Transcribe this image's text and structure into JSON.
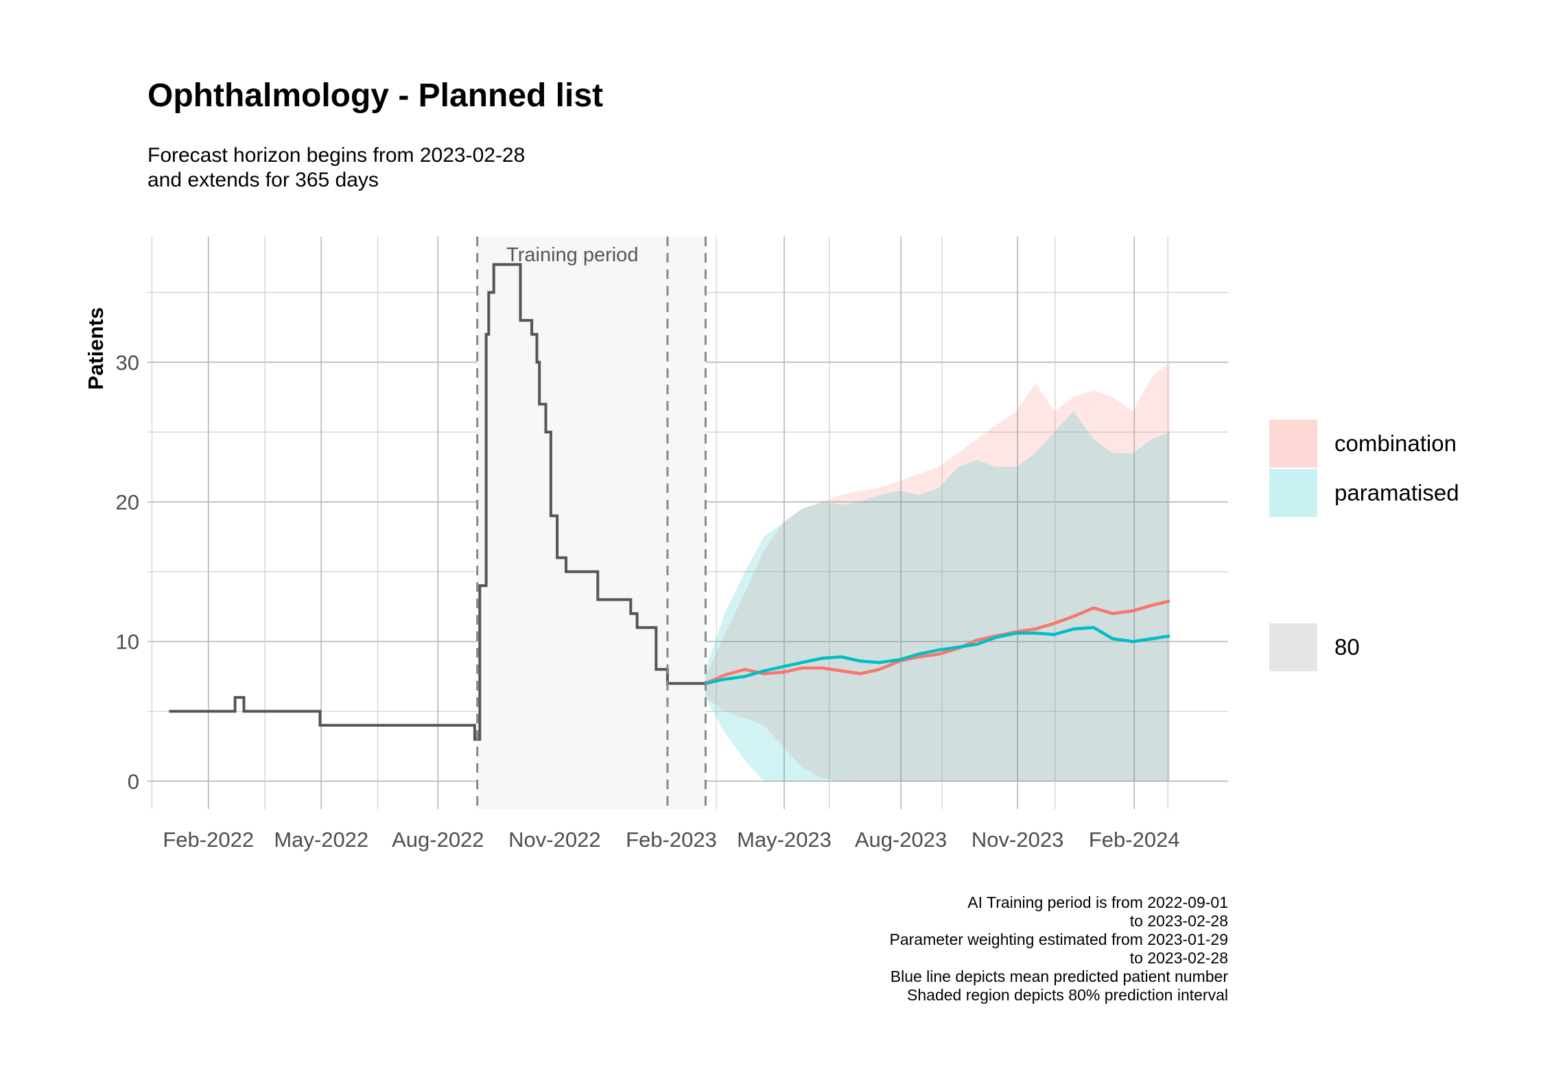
{
  "title": "Ophthalmology - Planned list",
  "subtitle": [
    "Forecast horizon begins from 2023-02-28",
    "and extends for 365 days"
  ],
  "caption": [
    "AI Training period is from 2022-09-01",
    "to 2023-02-28",
    "Parameter weighting estimated from 2023-01-29",
    "to 2023-02-28",
    "Blue line depicts mean predicted patient number",
    "Shaded region depicts 80% prediction interval"
  ],
  "legend": {
    "items": [
      {
        "label": "combination",
        "color": "#F8766D"
      },
      {
        "label": "paramatised",
        "color": "#00BFC4"
      }
    ],
    "interval_label": "80"
  },
  "colors": {
    "observed": "#555555",
    "combination": "#F8766D",
    "paramatised": "#00BFC4",
    "training_shade": "#F7F7F7"
  },
  "chart_data": {
    "type": "line",
    "ylabel": "Patients",
    "xlabel": "",
    "x_ticks": [
      "Feb-2022",
      "May-2022",
      "Aug-2022",
      "Nov-2022",
      "Feb-2023",
      "May-2023",
      "Aug-2023",
      "Nov-2023",
      "Feb-2024"
    ],
    "y_ticks": [
      0,
      10,
      20,
      30
    ],
    "ylim": [
      -2,
      39
    ],
    "xlim": [
      "2021-12-15",
      "2024-04-15"
    ],
    "grid": true,
    "legend_position": "right",
    "training_period": {
      "label": "Training period",
      "start": "2022-09-01",
      "end": "2023-02-28"
    },
    "vlines": [
      "2022-09-01",
      "2023-01-29",
      "2023-02-28"
    ],
    "observed": {
      "x": [
        "2022-01-01",
        "2022-01-31",
        "2022-02-14",
        "2022-02-22",
        "2022-03-01",
        "2022-03-31",
        "2022-04-30",
        "2022-05-31",
        "2022-06-30",
        "2022-07-31",
        "2022-08-10",
        "2022-08-25",
        "2022-08-30",
        "2022-09-01",
        "2022-09-03",
        "2022-09-05",
        "2022-09-08",
        "2022-09-10",
        "2022-09-14",
        "2022-09-18",
        "2022-09-28",
        "2022-10-05",
        "2022-10-10",
        "2022-10-14",
        "2022-10-18",
        "2022-10-20",
        "2022-10-25",
        "2022-10-29",
        "2022-11-03",
        "2022-11-10",
        "2022-11-20",
        "2022-11-30",
        "2022-12-05",
        "2022-12-15",
        "2022-12-31",
        "2023-01-05",
        "2023-01-15",
        "2023-01-20",
        "2023-01-25",
        "2023-01-29",
        "2023-02-10",
        "2023-02-28"
      ],
      "y": [
        5,
        5,
        5,
        6,
        5,
        5,
        4,
        4,
        4,
        4,
        4,
        4,
        3,
        3,
        14,
        14,
        32,
        35,
        37,
        37,
        37,
        33,
        33,
        32,
        30,
        27,
        25,
        19,
        16,
        15,
        15,
        15,
        13,
        13,
        12,
        11,
        11,
        8,
        8,
        7,
        7,
        7
      ]
    },
    "series": [
      {
        "name": "combination",
        "x": [
          "2023-02-28",
          "2023-03-15",
          "2023-03-31",
          "2023-04-15",
          "2023-04-30",
          "2023-05-15",
          "2023-05-31",
          "2023-06-15",
          "2023-06-30",
          "2023-07-15",
          "2023-07-31",
          "2023-08-15",
          "2023-08-31",
          "2023-09-15",
          "2023-09-30",
          "2023-10-15",
          "2023-10-31",
          "2023-11-15",
          "2023-11-30",
          "2023-12-15",
          "2023-12-31",
          "2024-01-15",
          "2024-01-31",
          "2024-02-15",
          "2024-02-29"
        ],
        "values": [
          7.0,
          7.6,
          8.0,
          7.7,
          7.8,
          8.1,
          8.1,
          7.9,
          7.7,
          8.0,
          8.6,
          8.9,
          9.1,
          9.5,
          10.1,
          10.4,
          10.7,
          10.9,
          11.3,
          11.8,
          12.4,
          12.0,
          12.2,
          12.6,
          12.9
        ],
        "lower": [
          6.0,
          5.0,
          4.5,
          4.0,
          2.5,
          1.0,
          0.2,
          0,
          0,
          0,
          0,
          0,
          0,
          0,
          0,
          0,
          0,
          0,
          0,
          0,
          0,
          0,
          0,
          0,
          0
        ],
        "upper": [
          7.5,
          10.5,
          13.5,
          16.5,
          18.5,
          19.5,
          20.0,
          20.5,
          20.8,
          21.0,
          21.5,
          22.0,
          22.5,
          23.5,
          24.5,
          25.5,
          26.5,
          28.5,
          26.5,
          27.5,
          28.0,
          27.5,
          26.5,
          29.0,
          30.0
        ]
      },
      {
        "name": "paramatised",
        "x": [
          "2023-02-28",
          "2023-03-15",
          "2023-03-31",
          "2023-04-15",
          "2023-04-30",
          "2023-05-15",
          "2023-05-31",
          "2023-06-15",
          "2023-06-30",
          "2023-07-15",
          "2023-07-31",
          "2023-08-15",
          "2023-08-31",
          "2023-09-15",
          "2023-09-30",
          "2023-10-15",
          "2023-10-31",
          "2023-11-15",
          "2023-11-30",
          "2023-12-15",
          "2023-12-31",
          "2024-01-15",
          "2024-01-31",
          "2024-02-15",
          "2024-02-29"
        ],
        "values": [
          7.0,
          7.3,
          7.5,
          7.9,
          8.2,
          8.5,
          8.8,
          8.9,
          8.6,
          8.5,
          8.7,
          9.1,
          9.4,
          9.6,
          9.8,
          10.3,
          10.6,
          10.6,
          10.5,
          10.9,
          11.0,
          10.2,
          10.0,
          10.2,
          10.4
        ],
        "lower": [
          6.0,
          3.5,
          1.5,
          0,
          0,
          0,
          0,
          0,
          0,
          0,
          0,
          0,
          0,
          0,
          0,
          0,
          0,
          0,
          0,
          0,
          0,
          0,
          0,
          0,
          0
        ],
        "upper": [
          8.0,
          12.0,
          15.0,
          17.5,
          18.5,
          19.5,
          20.0,
          19.8,
          20.0,
          20.5,
          20.8,
          20.5,
          21.0,
          22.5,
          23.0,
          22.5,
          22.5,
          23.5,
          25.0,
          26.5,
          24.5,
          23.5,
          23.5,
          24.5,
          25.0
        ]
      }
    ]
  }
}
